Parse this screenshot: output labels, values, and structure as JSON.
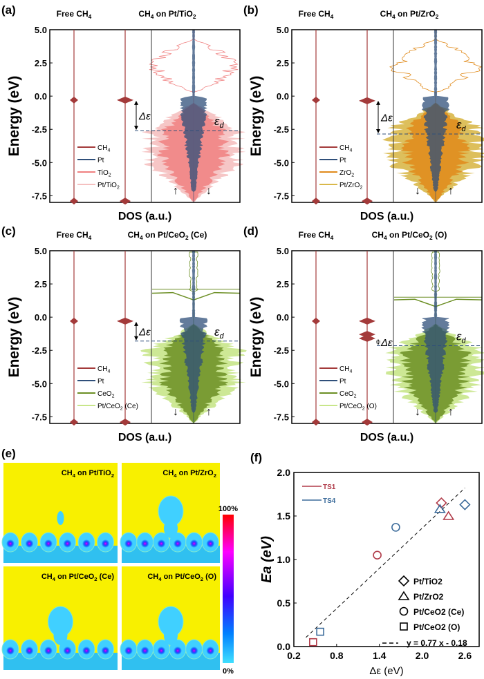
{
  "chart_data": [
    {
      "panel": "(a)",
      "type": "area",
      "header_left": "Free CH4",
      "header_right": "CH4 on Pt/TiO2",
      "ylabel": "Energy (eV)",
      "xlabel": "DOS (a.u.)",
      "ylim": [
        -8,
        5
      ],
      "yticks": [
        "5.0",
        "2.5",
        "0.0",
        "-2.5",
        "-5.0",
        "-7.5"
      ],
      "legend": [
        "CH4",
        "Pt",
        "TiO2",
        "Pt/TiO2"
      ],
      "colors": {
        "ch4": "#a33a3a",
        "pt": "#2f4f7a",
        "support": "#f08080",
        "total": "#f5c0c0"
      },
      "free_ch4_levels": [
        -0.3,
        -7.9
      ],
      "ads_ch4_levels": [
        -0.3,
        -7.9
      ],
      "d_band_center": -2.6,
      "delta_label": "Δε",
      "ed_label": "εd",
      "spin_up_down": [
        "↑",
        "↓"
      ]
    },
    {
      "panel": "(b)",
      "type": "area",
      "header_left": "Free CH4",
      "header_right": "CH4 on Pt/ZrO2",
      "ylabel": "Energy (eV)",
      "xlabel": "DOS (a.u.)",
      "ylim": [
        -8,
        5
      ],
      "yticks": [
        "5.0",
        "2.5",
        "0.0",
        "-2.5",
        "-5.0",
        "-7.5"
      ],
      "legend": [
        "CH4",
        "Pt",
        "ZrO2",
        "Pt/ZrO2"
      ],
      "colors": {
        "ch4": "#a33a3a",
        "pt": "#2f4f7a",
        "support": "#e08a1a",
        "total": "#d9b84a"
      },
      "free_ch4_levels": [
        -0.3,
        -7.9
      ],
      "ads_ch4_levels": [
        -0.35,
        -7.9
      ],
      "d_band_center": -2.85,
      "delta_label": "Δε",
      "ed_label": "εd",
      "spin_up_down": [
        "↓",
        "↑"
      ]
    },
    {
      "panel": "(c)",
      "type": "area",
      "header_left": "Free CH4",
      "header_right": "CH4 on Pt/CeO2 (Ce)",
      "ylabel": "Energy (eV)",
      "xlabel": "DOS (a.u.)",
      "ylim": [
        -8,
        5
      ],
      "yticks": [
        "5.0",
        "2.5",
        "0.0",
        "-2.5",
        "-5.0",
        "-7.5"
      ],
      "legend": [
        "CH4",
        "Pt",
        "CeO2",
        "Pt/CeO2 (Ce)"
      ],
      "colors": {
        "ch4": "#a33a3a",
        "pt": "#2f4f7a",
        "support": "#6b8e23",
        "total": "#c8e68a"
      },
      "free_ch4_levels": [
        -0.3,
        -7.9
      ],
      "ads_ch4_levels": [
        -0.3,
        -7.9
      ],
      "d_band_center": -1.8,
      "delta_label": "Δε",
      "ed_label": "εd",
      "spin_up_down": [
        "↓",
        "↑"
      ]
    },
    {
      "panel": "(d)",
      "type": "area",
      "header_left": "Free CH4",
      "header_right": "CH4 on Pt/CeO2 (O)",
      "ylabel": "Energy (eV)",
      "xlabel": "DOS (a.u.)",
      "ylim": [
        -8,
        5
      ],
      "yticks": [
        "5.0",
        "2.5",
        "0.0",
        "-2.5",
        "-5.0",
        "-7.5"
      ],
      "legend": [
        "CH4",
        "Pt",
        "CeO2",
        "Pt/CeO2 (O)"
      ],
      "colors": {
        "ch4": "#a33a3a",
        "pt": "#2f4f7a",
        "support": "#6b8e23",
        "total": "#c8e68a"
      },
      "free_ch4_levels": [
        -0.3,
        -7.9
      ],
      "ads_ch4_levels": [
        -0.3,
        -1.3,
        -1.6,
        -7.9
      ],
      "d_band_center": -2.15,
      "delta_label": "Δε",
      "ed_label": "εd",
      "spin_up_down": [
        "↓",
        "↑"
      ]
    },
    {
      "panel": "(e)",
      "type": "heatmap",
      "maps": [
        "CH4 on Pt/TiO2",
        "CH4 on Pt/ZrO2",
        "CH4 on Pt/CeO2 (Ce)",
        "CH4 on Pt/CeO2 (O)"
      ],
      "colorbar": {
        "max_label": "100%",
        "min_label": "0%"
      }
    },
    {
      "panel": "(f)",
      "type": "scatter",
      "xlabel": "Δε (eV)",
      "ylabel": "Ea (eV)",
      "xlim": [
        0.2,
        2.8
      ],
      "ylim": [
        0,
        2.0
      ],
      "xticks": [
        "0.2",
        "0.8",
        "1.4",
        "2.0",
        "2.6"
      ],
      "yticks": [
        "0.0",
        "0.5",
        "1.0",
        "1.5",
        "2.0"
      ],
      "series": [
        {
          "name": "TS1",
          "color": "#b03a48",
          "points": [
            {
              "system": "Pt/TiO2",
              "marker": "diamond",
              "x": 2.27,
              "y": 1.65
            },
            {
              "system": "Pt/ZrO2",
              "marker": "triangle",
              "x": 2.37,
              "y": 1.5
            },
            {
              "system": "Pt/CeO2 (Ce)",
              "marker": "circle",
              "x": 1.37,
              "y": 1.05
            },
            {
              "system": "Pt/CeO2 (O)",
              "marker": "square",
              "x": 0.47,
              "y": 0.05
            }
          ]
        },
        {
          "name": "TS4",
          "color": "#3a6a9a",
          "points": [
            {
              "system": "Pt/TiO2",
              "marker": "diamond",
              "x": 2.6,
              "y": 1.63
            },
            {
              "system": "Pt/ZrO2",
              "marker": "triangle",
              "x": 2.25,
              "y": 1.58
            },
            {
              "system": "Pt/CeO2 (Ce)",
              "marker": "circle",
              "x": 1.63,
              "y": 1.37
            },
            {
              "system": "Pt/CeO2 (O)",
              "marker": "square",
              "x": 0.57,
              "y": 0.17
            }
          ]
        }
      ],
      "marker_legend": [
        "Pt/TiO2",
        "Pt/ZrO2",
        "Pt/CeO2 (Ce)",
        "Pt/CeO2 (O)"
      ],
      "fit": {
        "label": "y = 0.77 x - 0.18",
        "slope": 0.77,
        "intercept": -0.18,
        "x_range": [
          0.37,
          2.6
        ]
      }
    }
  ]
}
